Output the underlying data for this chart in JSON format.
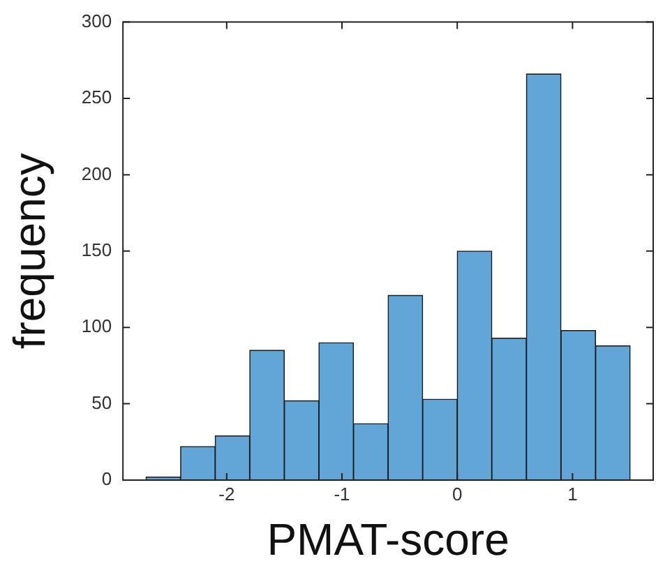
{
  "chart_data": {
    "type": "histogram",
    "xlabel": "PMAT-score",
    "ylabel": "frequency",
    "bins": [
      -2.7,
      -2.4,
      -2.1,
      -1.8,
      -1.5,
      -1.2,
      -0.9,
      -0.6,
      -0.3,
      0,
      0.3,
      0.6,
      0.9,
      1.2,
      1.5
    ],
    "values": [
      2,
      22,
      29,
      85,
      52,
      90,
      37,
      121,
      53,
      150,
      93,
      266,
      98,
      88
    ],
    "color": "#61a6d6",
    "xlim": [
      -2.9,
      1.7
    ],
    "xticks": [
      -2,
      -1,
      0,
      1
    ],
    "ylim": [
      0,
      300
    ],
    "yticks": [
      0,
      50,
      100,
      150,
      200,
      250,
      300
    ],
    "grid": false
  }
}
